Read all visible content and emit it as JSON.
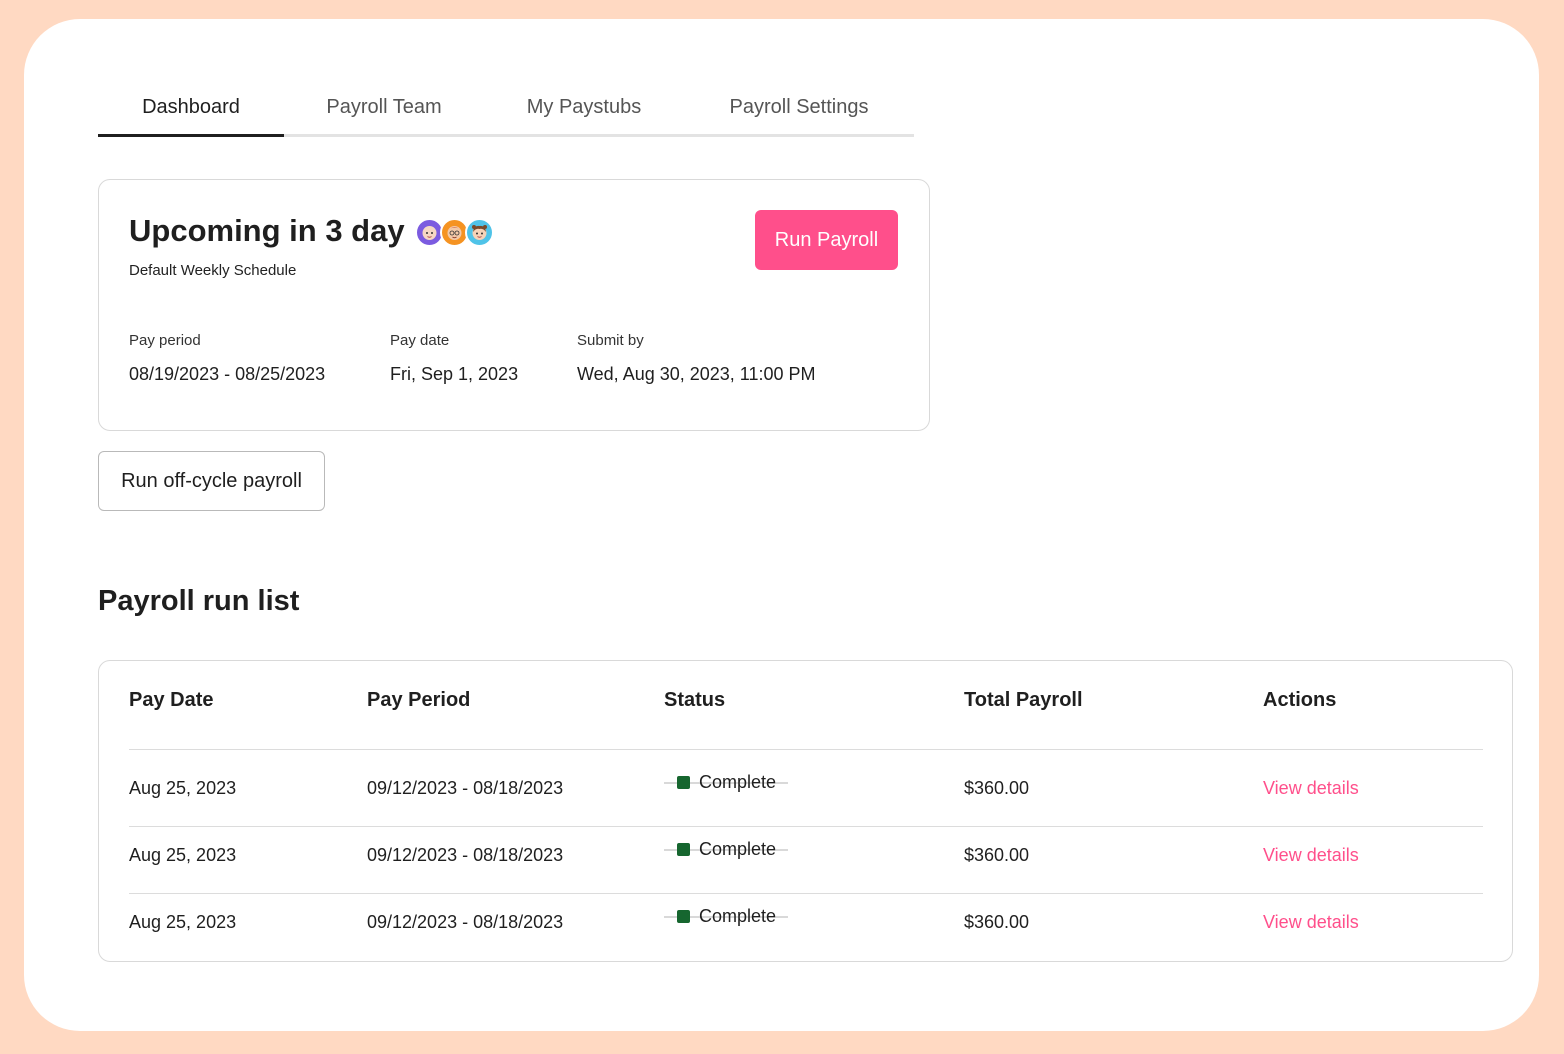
{
  "tabs": [
    {
      "label": "Dashboard",
      "active": true
    },
    {
      "label": "Payroll Team",
      "active": false
    },
    {
      "label": "My Paystubs",
      "active": false
    },
    {
      "label": "Payroll Settings",
      "active": false
    }
  ],
  "upcoming": {
    "title": "Upcoming in 3 day",
    "subtitle": "Default Weekly Schedule",
    "run_button": "Run Payroll",
    "avatars": [
      {
        "icon": "avatar-person-1",
        "color": "#7B5BE0"
      },
      {
        "icon": "avatar-person-2",
        "color": "#F59322"
      },
      {
        "icon": "avatar-person-3",
        "color": "#4FC3E8"
      }
    ],
    "pay_period_label": "Pay period",
    "pay_period_value": "08/19/2023 - 08/25/2023",
    "pay_date_label": "Pay date",
    "pay_date_value": "Fri, Sep 1, 2023",
    "submit_by_label": "Submit by",
    "submit_by_value": "Wed, Aug 30, 2023, 11:00 PM"
  },
  "offcycle_button": "Run off-cycle payroll",
  "section_title": "Payroll run list",
  "table": {
    "headers": [
      "Pay Date",
      "Pay Period",
      "Status",
      "Total Payroll",
      "Actions"
    ],
    "rows": [
      {
        "pay_date": "Aug 25, 2023",
        "pay_period": "09/12/2023 - 08/18/2023",
        "status": "Complete",
        "total": "$360.00",
        "action": "View details"
      },
      {
        "pay_date": "Aug 25, 2023",
        "pay_period": "09/12/2023 - 08/18/2023",
        "status": "Complete",
        "total": "$360.00",
        "action": "View details"
      },
      {
        "pay_date": "Aug 25, 2023",
        "pay_period": "09/12/2023 - 08/18/2023",
        "status": "Complete",
        "total": "$360.00",
        "action": "View details"
      }
    ]
  },
  "colors": {
    "background": "#FFD9C2",
    "accent": "#FF4F8B",
    "status_complete": "#16662F"
  }
}
